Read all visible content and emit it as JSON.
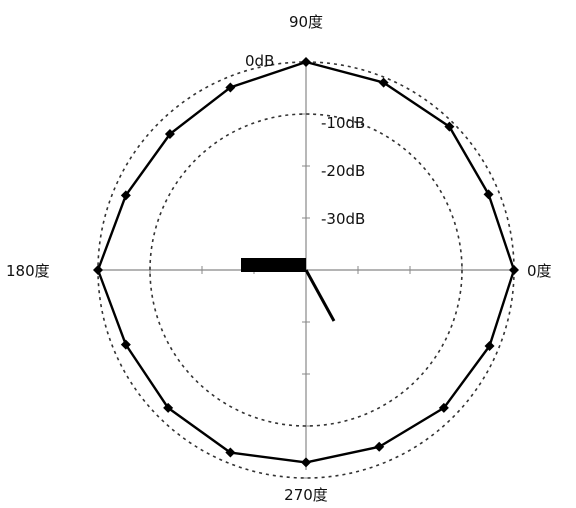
{
  "chart_data": {
    "type": "polar-line",
    "angle_labels": [
      "0度",
      "90度",
      "180度",
      "270度"
    ],
    "db_labels": [
      "0dB",
      "-10dB",
      "-20dB",
      "-30dB"
    ],
    "db_rings": [
      0,
      -10,
      -20,
      -30
    ],
    "dashed_rings": [
      0,
      -10
    ],
    "radial_range_db": [
      -40,
      0
    ],
    "tick_step_db": 10,
    "series": [
      {
        "angles_deg": [
          0,
          22.5,
          45,
          67.5,
          90,
          112.5,
          135,
          157.5,
          180,
          202.5,
          225,
          247.5,
          270,
          292.5,
          315,
          337.5
        ],
        "values_db": [
          0,
          -2,
          -1,
          -1,
          0,
          -2,
          -3,
          -2.5,
          0,
          -2.5,
          -2.5,
          -2,
          -3,
          -3.2,
          -2.5,
          -1.8
        ]
      }
    ],
    "source_icon": "speaker-pointer-icon"
  }
}
